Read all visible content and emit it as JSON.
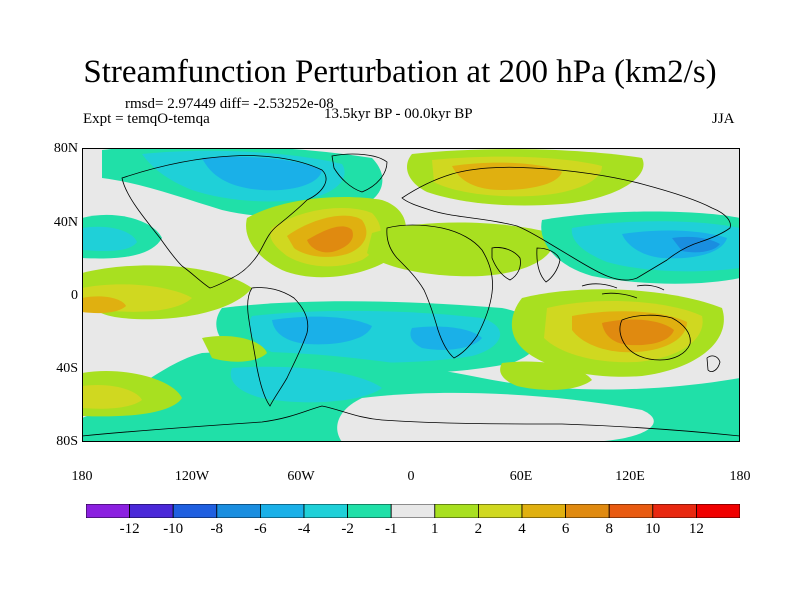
{
  "title": "Streamfunction Perturbation at 200 hPa (km2/s)",
  "stats": "rmsd= 2.97449 diff= -2.53252e-08",
  "experiment": "Expt = temqO-temqa",
  "period": "13.5kyr BP - 00.0kyr BP",
  "season": "JJA",
  "lat_labels": [
    "80N",
    "40N",
    "0",
    "40S",
    "80S"
  ],
  "lon_labels": [
    "180",
    "120W",
    "60W",
    "0",
    "60E",
    "120E",
    "180"
  ],
  "colorbar": {
    "labels": [
      "-12",
      "-10",
      "-8",
      "-6",
      "-4",
      "-2",
      "-1",
      "1",
      "2",
      "4",
      "6",
      "8",
      "10",
      "12"
    ],
    "colors": [
      "#8b20e0",
      "#4a28d8",
      "#1f5fe0",
      "#1a8ee0",
      "#1ab0e8",
      "#1fd0d8",
      "#20e0a8",
      "#e8e8e8",
      "#a8e020",
      "#d0d820",
      "#e0b010",
      "#e08a10",
      "#e85a10",
      "#e82810",
      "#f00000"
    ]
  },
  "colors": {
    "neutral": "#e8e8e8",
    "pos_light": "#a8e020",
    "pos_mid": "#d0d820",
    "pos_strong": "#e0b010",
    "pos_stronger": "#e08a10",
    "pos_max": "#e85a10",
    "neg_light": "#20e0a8",
    "neg_mid": "#1fd0d8",
    "neg_strong": "#1ab0e8",
    "neg_stronger": "#1a8ee0",
    "neg_max": "#1f5fe0",
    "coast": "#000000"
  }
}
